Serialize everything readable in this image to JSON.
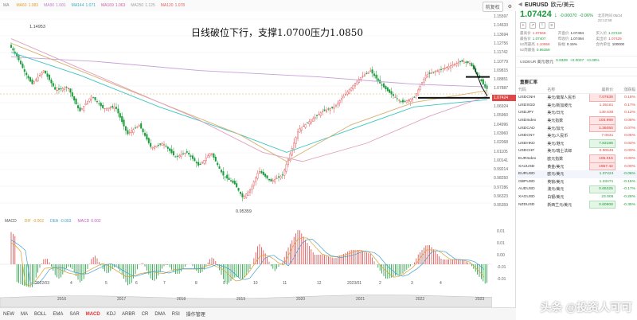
{
  "chart_header": {
    "legend": [
      {
        "label": "MA",
        "value": ""
      },
      {
        "label": "MA60",
        "value": "1.083"
      },
      {
        "label": "MA90",
        "value": "1.081"
      },
      {
        "label": "MA144",
        "value": "1.071"
      },
      {
        "label": "MA169",
        "value": "1.063"
      },
      {
        "label": "MA250",
        "value": "1.125"
      },
      {
        "label": "MA120",
        "value": "1.078"
      }
    ],
    "tools": [
      "前复权",
      "⚙"
    ]
  },
  "annotation": "日线破位下行，支撑1.0700压力1.0850",
  "high_label": "1.14953",
  "low_label": "0.95359",
  "price_scale": [
    "1.15597",
    "1.14633",
    "1.13694",
    "1.12756",
    "1.11742",
    "1.10779",
    "1.09815",
    "1.08851",
    "1.07887",
    "1.07424",
    "1.06924",
    "1.05960",
    "1.04996",
    "1.03960",
    "1.02068",
    "1.01105",
    "1.00141",
    "0.99214",
    "0.98250",
    "0.97286",
    "0.96323",
    "0.95359"
  ],
  "current_price_tag": "1.07424",
  "macd": {
    "legend": [
      {
        "label": "MACD",
        "value": ""
      },
      {
        "label": "DIF",
        "value": "-0.002"
      },
      {
        "label": "DEA",
        "value": "-0.003"
      },
      {
        "label": "MACD",
        "value": "0.002"
      }
    ],
    "scale": [
      "0.01",
      "0.01",
      "0.00",
      "-0.01",
      "-0.01"
    ]
  },
  "time_axis": [
    "2022/03",
    "4",
    "5",
    "6",
    "7",
    "8",
    "9",
    "10",
    "11",
    "12",
    "2023/01",
    "2",
    "3",
    "4"
  ],
  "mini_axis": [
    "2016",
    "2017",
    "2018",
    "2019",
    "2020",
    "2021",
    "2022",
    "2023"
  ],
  "bottom_tabs": [
    "NEW",
    "MA",
    "BOLL",
    "EMA",
    "SAR",
    "MACD",
    "KDJ",
    "ARBR",
    "CR",
    "DMA",
    "RSI",
    "操作管理"
  ],
  "quote": {
    "symbol": "EURUSD",
    "name": "欧元/美元",
    "price": "1.07424",
    "arrow": "↓",
    "change": "-0.00070",
    "change_pct": "-0.06%",
    "time": "北京时间 05/24 22:12:58",
    "stats": [
      {
        "k": "最高价",
        "v": "1.07568",
        "c": "red"
      },
      {
        "k": "开盘价",
        "v": "1.07494",
        "c": ""
      },
      {
        "k": "买入价",
        "v": "1.07419",
        "c": "green"
      },
      {
        "k": "最低价",
        "v": "1.07407",
        "c": "green"
      },
      {
        "k": "昨收价",
        "v": "1.07494",
        "c": ""
      },
      {
        "k": "卖出价",
        "v": "1.07429",
        "c": "red"
      },
      {
        "k": "52周最高",
        "v": "1.10956",
        "c": "red"
      },
      {
        "k": "振幅",
        "v": "0.15%",
        "c": ""
      },
      {
        "k": "合约单位",
        "v": "100000",
        "c": ""
      },
      {
        "k": "52周最低",
        "v": "0.95359",
        "c": "green"
      }
    ],
    "subrow": {
      "label": "USDEUR 美元/欧元",
      "price": "0.9309",
      "change": "+0.0007",
      "pct": "+0.08%"
    },
    "related_title": "重要汇率",
    "related_headers": [
      "代码",
      "名称",
      "最新价",
      "涨跌幅"
    ],
    "related": [
      {
        "code": "USDCNH",
        "name": "美元/离岸人民币",
        "price": "7.07639",
        "pct": "0.18%",
        "style": "red"
      },
      {
        "code": "USDSGD",
        "name": "美元/新加坡元",
        "price": "1.35181",
        "pct": "0.17%",
        "style": "plain"
      },
      {
        "code": "USDJPY",
        "name": "美元/日元",
        "price": "139.636",
        "pct": "0.12%",
        "style": "plain"
      },
      {
        "code": "USDIndex",
        "name": "美元指数",
        "price": "103.999",
        "pct": "0.08%",
        "style": "red"
      },
      {
        "code": "USDCAD",
        "name": "美元/加元",
        "price": "1.36050",
        "pct": "0.07%",
        "style": "red"
      },
      {
        "code": "USDCNY",
        "name": "美元/人民币",
        "price": "7.0631",
        "pct": "0.05%",
        "style": "plain"
      },
      {
        "code": "USDHKD",
        "name": "美元/港元",
        "price": "7.83188",
        "pct": "0.04%",
        "style": "green"
      },
      {
        "code": "USDCHF",
        "name": "美元/瑞士法郎",
        "price": "0.90549",
        "pct": "0.03%",
        "style": "plain"
      },
      {
        "code": "EURIndex",
        "name": "欧元指数",
        "price": "105.015",
        "pct": "0.00%",
        "style": "red"
      },
      {
        "code": "XAUUSD",
        "name": "黄金/美元",
        "price": "1957.42",
        "pct": "0.00%",
        "style": "red"
      },
      {
        "code": "EURUSD",
        "name": "欧元/美元",
        "price": "1.07424",
        "pct": "-0.06%",
        "style": "sel"
      },
      {
        "code": "GBPUSD",
        "name": "英镑/美元",
        "price": "1.23471",
        "pct": "-0.15%",
        "style": "plain"
      },
      {
        "code": "AUDUSD",
        "name": "澳元/美元",
        "price": "0.65325",
        "pct": "-0.17%",
        "style": "green"
      },
      {
        "code": "XAGUSD",
        "name": "白银/美元",
        "price": "23.005",
        "pct": "-0.26%",
        "style": "plain"
      },
      {
        "code": "NZDUSD",
        "name": "新西兰元/美元",
        "price": "0.60908",
        "pct": "-0.35%",
        "style": "green"
      }
    ]
  },
  "watermark": "头条 @投资人可可",
  "colors": {
    "up": "#e04848",
    "down": "#1a9c3a",
    "ma_purple": "#c6a0d8",
    "ma_teal": "#3cc6c0",
    "ma_orange": "#d8b070"
  }
}
